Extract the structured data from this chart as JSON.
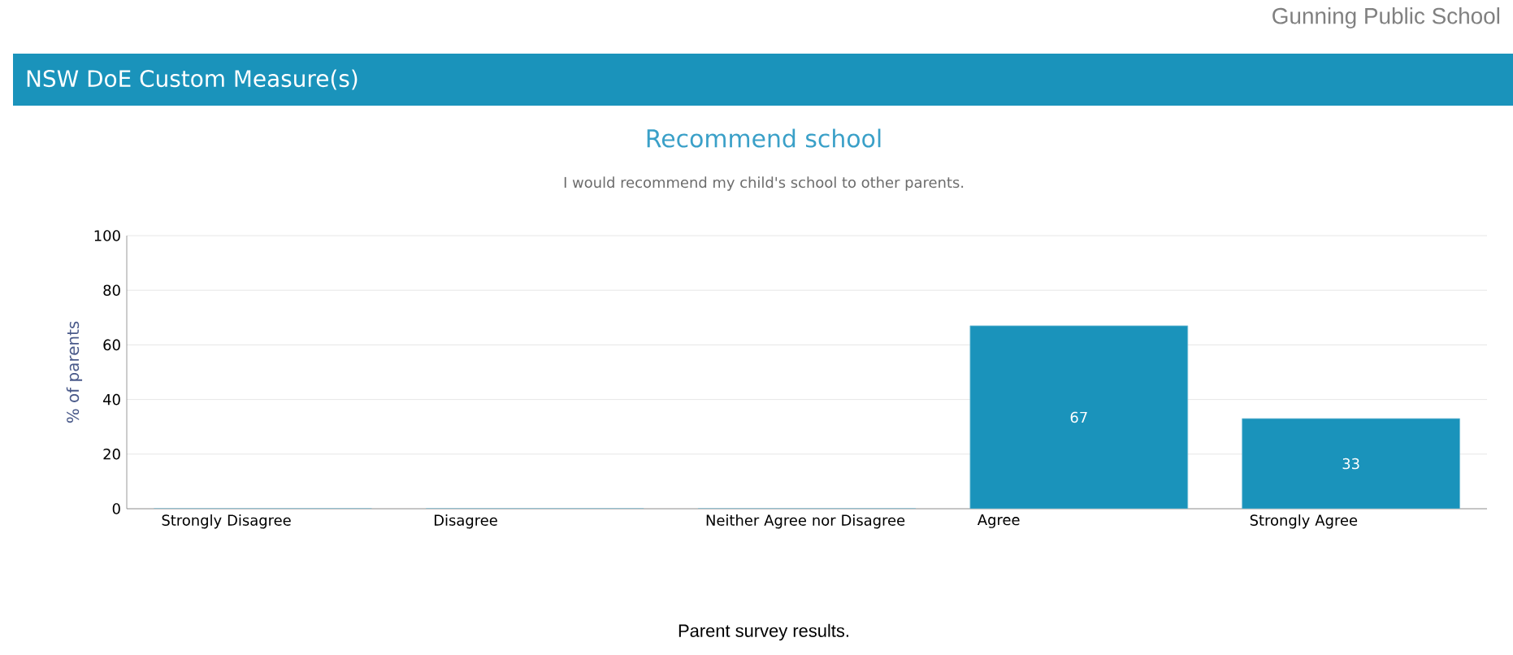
{
  "chart_data": {
    "type": "bar",
    "title": "Recommend school",
    "subtitle": "I would recommend my child's school to other parents.",
    "ylabel": "% of parents",
    "categories": [
      "Strongly Disagree",
      "Disagree",
      "Neither Agree nor Disagree",
      "Agree",
      "Strongly Agree"
    ],
    "values": [
      0,
      0,
      0,
      67,
      33
    ],
    "value_labels": [
      null,
      null,
      null,
      "67",
      "33"
    ],
    "color": "#1a93bb",
    "ylim": [
      0,
      100
    ],
    "yticks": [
      0,
      20,
      40,
      60,
      80,
      100
    ],
    "grid": "y",
    "annotations": [
      "Gunning Public School",
      "NSW DoE Custom Measure(s)",
      "Parent survey results."
    ]
  }
}
